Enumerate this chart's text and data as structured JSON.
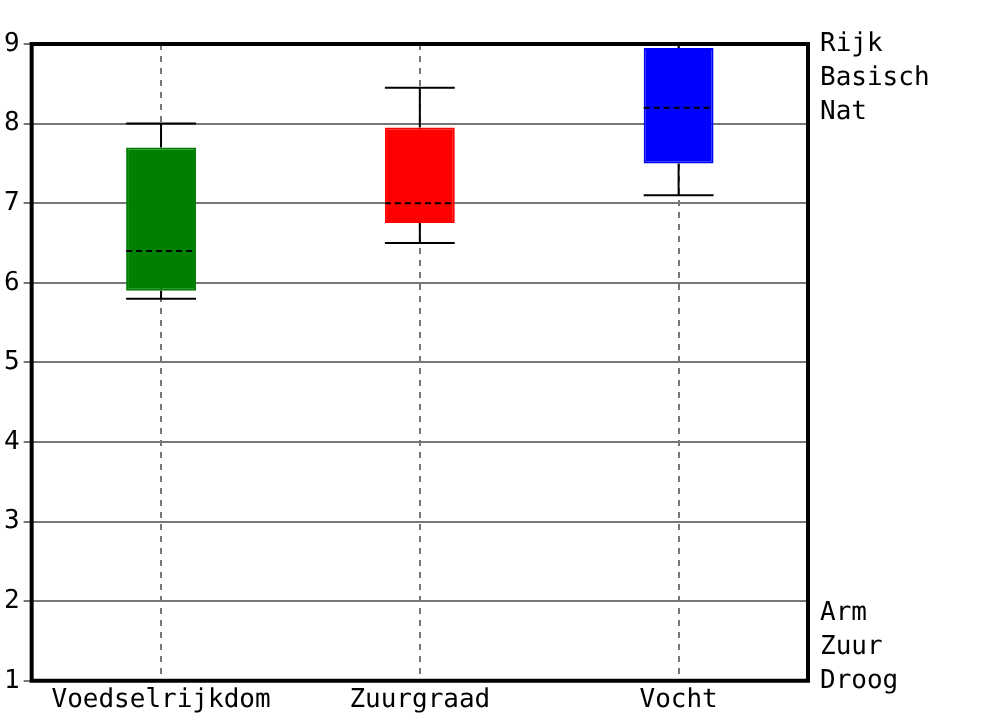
{
  "chart_data": {
    "type": "box",
    "categories": [
      "Voedselrijkdom",
      "Zuurgraad",
      "Vocht"
    ],
    "colors": [
      "#008000",
      "#ff0000",
      "#0000ff"
    ],
    "boxes": [
      {
        "low": 5.8,
        "q1": 5.9,
        "median": 6.4,
        "q3": 7.7,
        "high": 8.0
      },
      {
        "low": 6.5,
        "q1": 6.75,
        "median": 7.0,
        "q3": 7.95,
        "high": 8.45
      },
      {
        "low": 7.1,
        "q1": 7.5,
        "median": 8.2,
        "q3": 8.95,
        "high": 9.0
      }
    ],
    "ylim": [
      1,
      9
    ],
    "yticks": [
      1,
      2,
      3,
      4,
      5,
      6,
      7,
      8,
      9
    ],
    "annotations": [
      "Rijk",
      "Basisch",
      "Nat",
      "Arm",
      "Zuur",
      "Droog"
    ],
    "grid": true,
    "legend": false
  }
}
